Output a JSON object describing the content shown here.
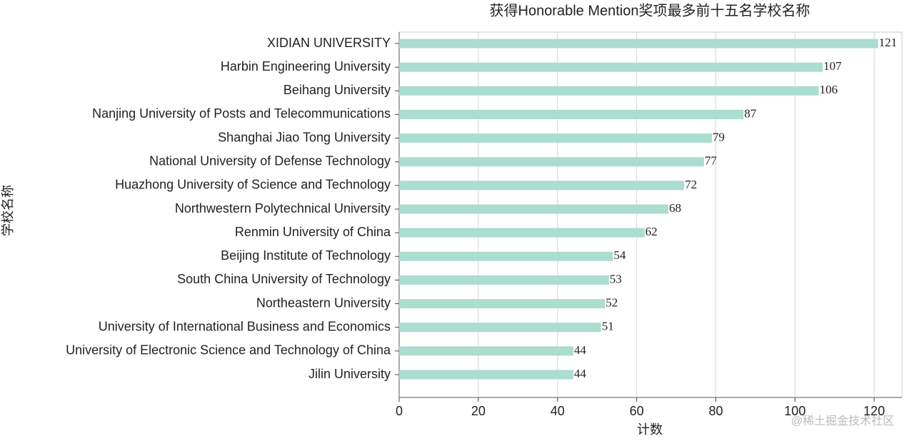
{
  "chart_data": {
    "type": "barh",
    "title": "获得Honorable Mention奖项最多前十五名学校名称",
    "x_label": "计数",
    "y_label": "学校名称",
    "categories": [
      "XIDIAN UNIVERSITY",
      "Harbin Engineering University",
      "Beihang University",
      "Nanjing University of Posts and Telecommunications",
      "Shanghai Jiao Tong University",
      "National University of Defense Technology",
      "Huazhong University of Science and Technology",
      "Northwestern Polytechnical University",
      "Renmin University of China",
      "Beijing Institute of Technology",
      "South China University of Technology",
      "Northeastern University",
      "University of International Business and Economics",
      "University of Electronic Science and Technology of China",
      "Jilin University"
    ],
    "values": [
      121,
      107,
      106,
      87,
      79,
      77,
      72,
      68,
      62,
      54,
      53,
      52,
      51,
      44,
      44
    ],
    "color": "#abddd0",
    "xlim": [
      0,
      127
    ],
    "xticks": [
      0,
      20,
      40,
      60,
      80,
      100,
      120
    ],
    "grid": true
  },
  "watermark": "@稀土掘金技术社区"
}
